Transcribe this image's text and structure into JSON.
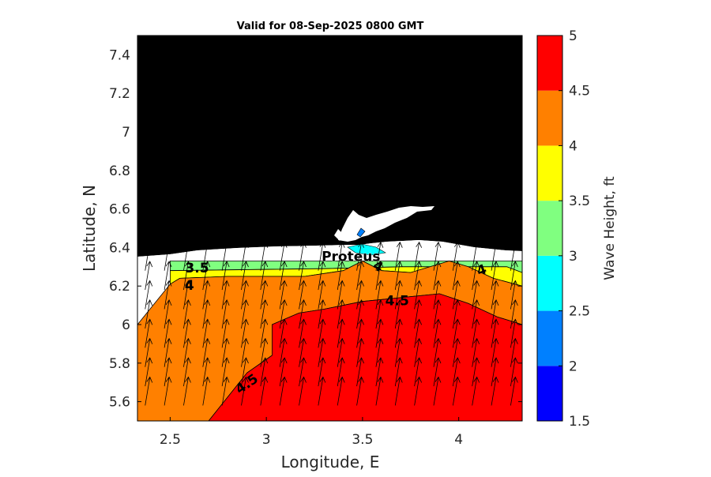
{
  "chart_data": {
    "type": "heatmap",
    "title": "Valid for 08-Sep-2025 0800 GMT",
    "xlabel": "Longitude, E",
    "ylabel": "Latitude, N",
    "xlim": [
      2.33,
      4.33
    ],
    "ylim": [
      5.5,
      7.5
    ],
    "xticks": [
      2.5,
      3,
      3.5,
      4
    ],
    "xtick_labels": [
      "2.5",
      "3",
      "3.5",
      "4"
    ],
    "yticks": [
      5.6,
      5.8,
      6,
      6.2,
      6.4,
      6.6,
      6.8,
      7,
      7.2,
      7.4
    ],
    "ytick_labels": [
      "5.6",
      "5.8",
      "6",
      "6.2",
      "6.4",
      "6.6",
      "6.8",
      "7",
      "7.2",
      "7.4"
    ],
    "colorbar": {
      "label": "Wave Height, ft",
      "levels": [
        1.5,
        2,
        2.5,
        3,
        3.5,
        4,
        4.5,
        5
      ],
      "level_labels": [
        "1.5",
        "2",
        "2.5",
        "3",
        "3.5",
        "4",
        "4.5",
        "5"
      ],
      "colors": [
        "#0000ff",
        "#0080ff",
        "#00ffff",
        "#80ff80",
        "#ffff00",
        "#ff8000",
        "#ff0000"
      ]
    },
    "land_color": "#000000",
    "bands": [
      {
        "range": [
          3,
          3.5
        ],
        "color": "#80ff80",
        "poly": [
          [
            2.5,
            6.33
          ],
          [
            4.33,
            6.33
          ],
          [
            4.33,
            6.27
          ],
          [
            4.25,
            6.3
          ],
          [
            3.7,
            6.3
          ],
          [
            3.3,
            6.29
          ],
          [
            2.5,
            6.28
          ]
        ]
      },
      {
        "range": [
          3.5,
          4
        ],
        "color": "#ffff00",
        "poly": [
          [
            2.5,
            6.28
          ],
          [
            3.3,
            6.29
          ],
          [
            3.7,
            6.3
          ],
          [
            4.25,
            6.3
          ],
          [
            4.33,
            6.27
          ],
          [
            4.33,
            6.2
          ],
          [
            4.18,
            6.24
          ],
          [
            4.05,
            6.3
          ],
          [
            3.95,
            6.33
          ],
          [
            3.75,
            6.27
          ],
          [
            3.6,
            6.28
          ],
          [
            3.5,
            6.33
          ],
          [
            3.4,
            6.28
          ],
          [
            3.2,
            6.25
          ],
          [
            2.8,
            6.25
          ],
          [
            2.55,
            6.24
          ],
          [
            2.5,
            6.21
          ]
        ]
      },
      {
        "range": [
          4,
          4.5
        ],
        "color": "#ff8000",
        "poly": [
          [
            2.33,
            6.0
          ],
          [
            2.5,
            6.21
          ],
          [
            2.55,
            6.24
          ],
          [
            2.8,
            6.25
          ],
          [
            3.2,
            6.25
          ],
          [
            3.4,
            6.28
          ],
          [
            3.5,
            6.33
          ],
          [
            3.6,
            6.28
          ],
          [
            3.75,
            6.27
          ],
          [
            3.95,
            6.33
          ],
          [
            4.05,
            6.3
          ],
          [
            4.18,
            6.24
          ],
          [
            4.33,
            6.2
          ],
          [
            4.33,
            6.0
          ],
          [
            4.2,
            6.04
          ],
          [
            4.05,
            6.11
          ],
          [
            3.9,
            6.16
          ],
          [
            3.6,
            6.13
          ],
          [
            3.5,
            6.12
          ],
          [
            3.3,
            6.08
          ],
          [
            3.17,
            6.06
          ],
          [
            3.03,
            6.0
          ],
          [
            3.03,
            5.84
          ],
          [
            2.9,
            5.75
          ],
          [
            2.7,
            5.5
          ],
          [
            2.33,
            5.5
          ]
        ]
      },
      {
        "range": [
          4.5,
          5
        ],
        "color": "#ff0000",
        "poly": [
          [
            2.7,
            5.5
          ],
          [
            2.9,
            5.75
          ],
          [
            3.03,
            5.84
          ],
          [
            3.03,
            6.0
          ],
          [
            3.17,
            6.06
          ],
          [
            3.3,
            6.08
          ],
          [
            3.5,
            6.12
          ],
          [
            3.6,
            6.13
          ],
          [
            3.9,
            6.16
          ],
          [
            4.05,
            6.11
          ],
          [
            4.2,
            6.04
          ],
          [
            4.33,
            6.0
          ],
          [
            4.33,
            5.5
          ]
        ]
      }
    ],
    "contour_labels": [
      {
        "text": "3.5",
        "x": 2.64,
        "y": 6.29,
        "angle": 0
      },
      {
        "text": "4",
        "x": 2.6,
        "y": 6.2,
        "angle": 0
      },
      {
        "text": "4",
        "x": 3.58,
        "y": 6.3,
        "angle": 25
      },
      {
        "text": "4",
        "x": 4.12,
        "y": 6.28,
        "angle": -20
      },
      {
        "text": "4.5",
        "x": 3.68,
        "y": 6.12,
        "angle": 0
      },
      {
        "text": "4.5",
        "x": 2.9,
        "y": 5.69,
        "angle": -35
      }
    ],
    "place_label": {
      "text": "Proteus",
      "x": 3.44,
      "y": 6.33
    },
    "wind_arrows": {
      "lon_start": 2.37,
      "lon_step": 0.1,
      "lat_start": 5.58,
      "lat_step": 0.1,
      "lat_max": 6.33
    }
  }
}
